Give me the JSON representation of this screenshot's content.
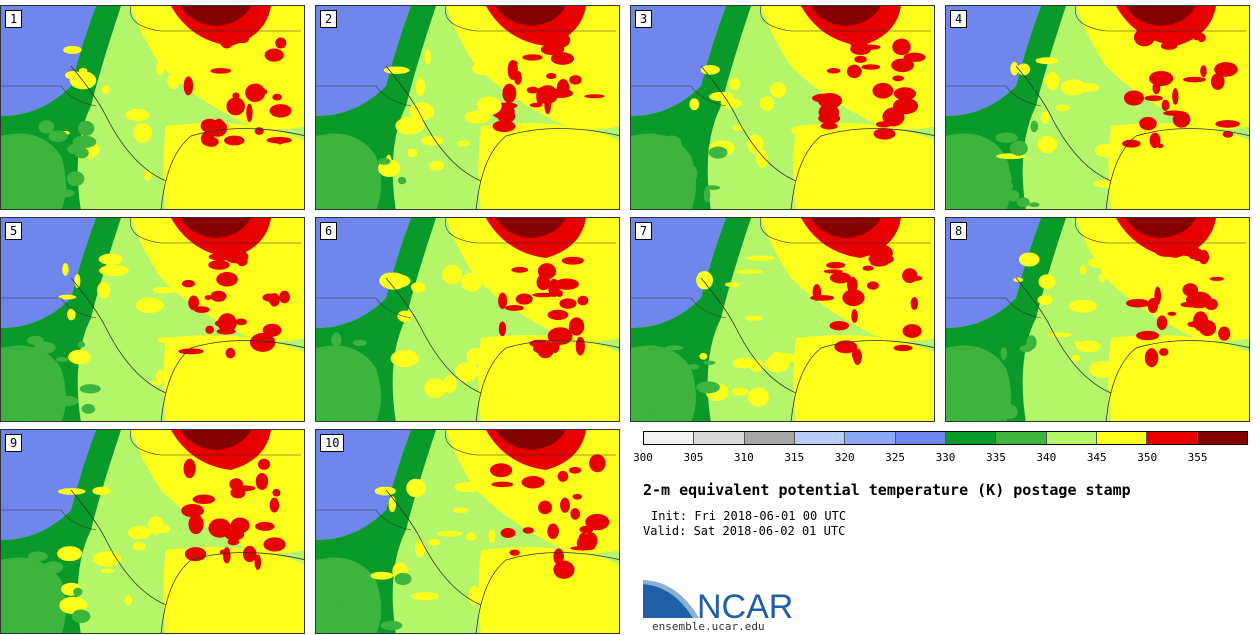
{
  "panels": [
    {
      "label": "1"
    },
    {
      "label": "2"
    },
    {
      "label": "3"
    },
    {
      "label": "4"
    },
    {
      "label": "5"
    },
    {
      "label": "6"
    },
    {
      "label": "7"
    },
    {
      "label": "8"
    },
    {
      "label": "9"
    },
    {
      "label": "10"
    }
  ],
  "colorbar": {
    "colors": [
      "#f2f2f2",
      "#d9d9d9",
      "#a6a6a6",
      "#b8cdf5",
      "#8aa8f5",
      "#6f86ec",
      "#0a9a2a",
      "#3db43d",
      "#b4f56a",
      "#ffff1e",
      "#e60000",
      "#850000"
    ],
    "ticks": [
      "300",
      "305",
      "310",
      "315",
      "320",
      "325",
      "330",
      "335",
      "340",
      "345",
      "350",
      "355"
    ]
  },
  "title": "2-m equivalent potential temperature (K) postage stamp",
  "init": "Init: Fri 2018-06-01 00 UTC",
  "valid": "Valid: Sat 2018-06-02 01 UTC",
  "logo": {
    "text": "NCAR",
    "color": "#1f5fa8"
  },
  "url": "ensemble.ucar.edu",
  "map_colors": {
    "blue": "#6f86ec",
    "dark_green": "#0a9a2a",
    "green": "#3db43d",
    "light_green": "#b4f56a",
    "yellow": "#ffff1e",
    "red": "#e60000",
    "dark_red": "#850000"
  }
}
